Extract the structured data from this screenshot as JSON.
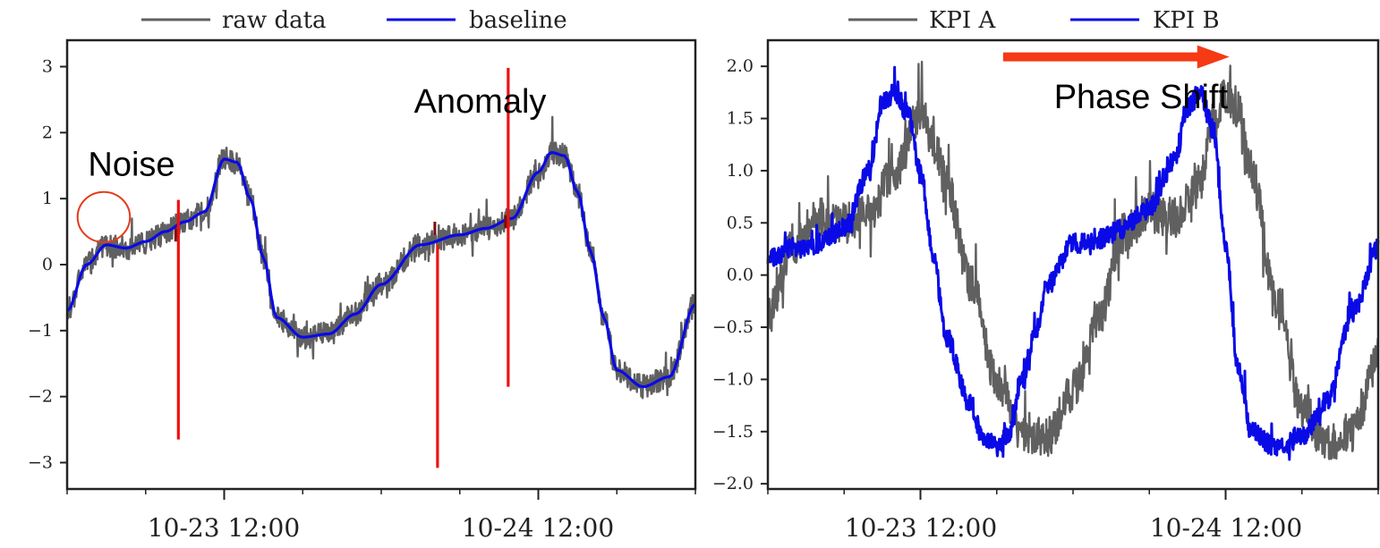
{
  "colors": {
    "raw": "#606060",
    "baseline": "#0a0ae6",
    "anomaly": "#ee1111",
    "circle": "#e63a1e",
    "arrow": "#f53a14",
    "frame": "#222222"
  },
  "chart_data": [
    {
      "type": "line",
      "legend": {
        "placement": "top-center",
        "entries": [
          "raw data",
          "baseline"
        ]
      },
      "x_tick_labels": [
        "10-23 12:00",
        "10-24 12:00"
      ],
      "xlim": [
        0,
        48
      ],
      "x_major_ticks": [
        12,
        36
      ],
      "x_minor_ticks": [
        0,
        6,
        18,
        24,
        30,
        42,
        48
      ],
      "ylim": [
        -3.4,
        3.4
      ],
      "y_ticks": [
        -3,
        -2,
        -1,
        0,
        1,
        2,
        3
      ],
      "y_tick_labels": [
        "−3",
        "−2",
        "−1",
        "0",
        "1",
        "2",
        "3"
      ],
      "grid": false,
      "series": [
        {
          "name": "baseline",
          "color_key": "baseline",
          "x": [
            0,
            1.5,
            3,
            4.5,
            6,
            7.5,
            9,
            10.5,
            12,
            13,
            14,
            15,
            16,
            18,
            20,
            22,
            24,
            27,
            30,
            32,
            34,
            36,
            37,
            38,
            39,
            40,
            41,
            42,
            44,
            46,
            48
          ],
          "y": [
            -0.7,
            0.0,
            0.3,
            0.25,
            0.35,
            0.5,
            0.65,
            0.8,
            1.6,
            1.55,
            1.0,
            0.1,
            -0.8,
            -1.1,
            -1.05,
            -0.75,
            -0.3,
            0.3,
            0.45,
            0.55,
            0.7,
            1.4,
            1.7,
            1.65,
            1.1,
            0.2,
            -0.8,
            -1.6,
            -1.85,
            -1.7,
            -0.6
          ]
        },
        {
          "name": "raw data",
          "color_key": "raw",
          "x": [
            0,
            1.5,
            3,
            4.5,
            6,
            7.5,
            9,
            10.5,
            12,
            13,
            14,
            15,
            16,
            18,
            20,
            22,
            24,
            27,
            30,
            32,
            34,
            36,
            37,
            38,
            39,
            40,
            41,
            42,
            44,
            46,
            48
          ],
          "y": [
            -0.7,
            0.0,
            0.3,
            0.25,
            0.35,
            0.5,
            0.65,
            0.8,
            1.6,
            1.55,
            1.0,
            0.1,
            -0.8,
            -1.1,
            -1.05,
            -0.75,
            -0.3,
            0.3,
            0.45,
            0.55,
            0.7,
            1.4,
            1.7,
            1.65,
            1.1,
            0.2,
            -0.8,
            -1.6,
            -1.85,
            -1.7,
            -0.6
          ],
          "noise_amplitude": 0.3
        }
      ],
      "anomaly_spikes": [
        {
          "x": 8.5,
          "y0": -2.65,
          "y1": 0.98
        },
        {
          "x": 28.3,
          "y0": -3.08,
          "y1": 0.3
        },
        {
          "x": 33.7,
          "y0": -1.85,
          "y1": 2.98
        }
      ],
      "annotations": [
        {
          "text": "Noise",
          "x": 1.6,
          "y": 1.35
        },
        {
          "text": "Anomaly",
          "x": 26.5,
          "y": 2.3
        }
      ],
      "noise_circle": {
        "x": 2.8,
        "y": 0.72,
        "radius_x": 2.0,
        "radius_y": 0.38
      }
    },
    {
      "type": "line",
      "legend": {
        "placement": "top-center",
        "entries": [
          "KPI A",
          "KPI B"
        ]
      },
      "x_tick_labels": [
        "10-23 12:00",
        "10-24 12:00"
      ],
      "xlim": [
        0,
        48
      ],
      "x_major_ticks": [
        12,
        36
      ],
      "x_minor_ticks": [
        0,
        6,
        18,
        24,
        30,
        42,
        48
      ],
      "ylim": [
        -2.05,
        2.25
      ],
      "y_ticks": [
        -2.0,
        -1.5,
        -1.0,
        -0.5,
        0.0,
        0.5,
        1.0,
        1.5,
        2.0
      ],
      "y_tick_labels": [
        "−2.0",
        "−1.5",
        "−1.0",
        "−0.5",
        "0.0",
        "0.5",
        "1.0",
        "1.5",
        "2.0"
      ],
      "grid": false,
      "series": [
        {
          "name": "KPI A",
          "color_key": "raw",
          "x": [
            0,
            2,
            4,
            6,
            8,
            10,
            12,
            13,
            14,
            16,
            18,
            20,
            22,
            24,
            26,
            28,
            30,
            32,
            34,
            35,
            36,
            37,
            38,
            40,
            42,
            44,
            46,
            48
          ],
          "y": [
            -0.4,
            0.3,
            0.55,
            0.5,
            0.6,
            1.0,
            1.55,
            1.3,
            0.9,
            -0.1,
            -1.0,
            -1.5,
            -1.55,
            -1.1,
            -0.4,
            0.4,
            0.6,
            0.55,
            0.9,
            1.45,
            1.75,
            1.6,
            1.0,
            -0.3,
            -1.3,
            -1.6,
            -1.5,
            -0.8
          ],
          "noise_amplitude": 0.32
        },
        {
          "name": "KPI B",
          "color_key": "baseline",
          "x": [
            0,
            2,
            4,
            6,
            8,
            9,
            10,
            11,
            12,
            13,
            14,
            16,
            17,
            18,
            19,
            20,
            21,
            22,
            24,
            26,
            28,
            30,
            32,
            33,
            34,
            35,
            36,
            37,
            38,
            40,
            42,
            44,
            46,
            48
          ],
          "y": [
            0.15,
            0.25,
            0.3,
            0.45,
            1.0,
            1.65,
            1.75,
            1.55,
            1.0,
            0.2,
            -0.6,
            -1.25,
            -1.6,
            -1.65,
            -1.5,
            -1.0,
            -0.55,
            -0.1,
            0.3,
            0.35,
            0.45,
            0.65,
            1.1,
            1.6,
            1.75,
            1.4,
            0.3,
            -0.9,
            -1.5,
            -1.65,
            -1.55,
            -1.2,
            -0.35,
            0.25
          ],
          "noise_amplitude": 0.16
        }
      ],
      "annotations": [
        {
          "text": "Phase Shift",
          "x": 22.5,
          "y": 1.6
        }
      ],
      "shift_arrow": {
        "x0": 18.5,
        "x1": 36.3,
        "y": 2.09
      }
    }
  ]
}
